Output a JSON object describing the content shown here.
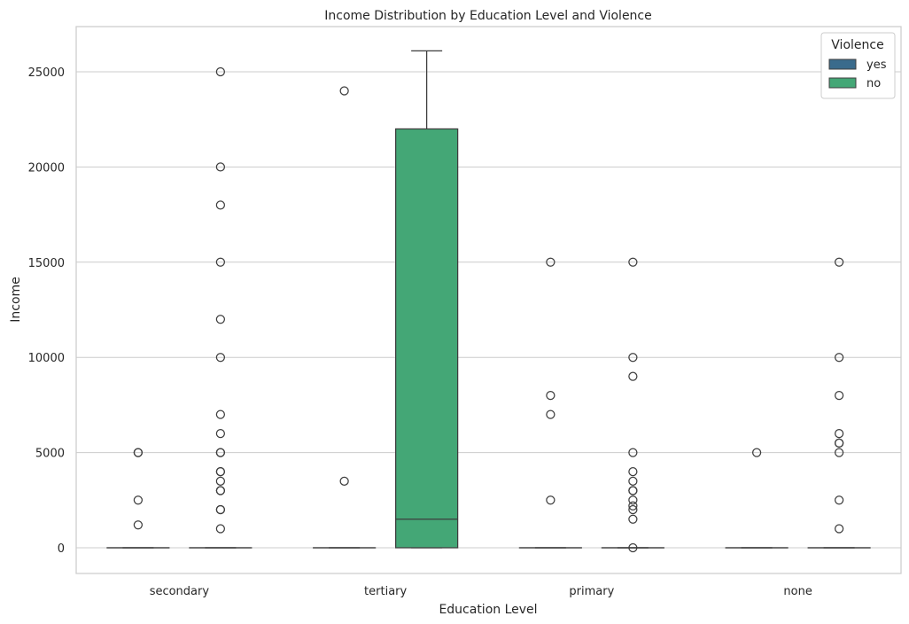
{
  "chart_data": {
    "type": "box",
    "title": "Income Distribution by Education Level and Violence",
    "xlabel": "Education Level",
    "ylabel": "Income",
    "categories": [
      "secondary",
      "tertiary",
      "primary",
      "none"
    ],
    "ylim": [
      -1300,
      27400
    ],
    "yticks": [
      0,
      5000,
      10000,
      15000,
      20000,
      25000
    ],
    "grid": "horizontal",
    "legend": {
      "title": "Violence",
      "position": "top-right"
    },
    "series": [
      {
        "name": "yes",
        "color": "#3a6b8c",
        "boxes": [
          {
            "category": "secondary",
            "q1": 0,
            "median": 0,
            "q3": 0,
            "whislo": 0,
            "whishi": 0,
            "fliers": [
              5000,
              5000,
              2500,
              1200
            ]
          },
          {
            "category": "tertiary",
            "q1": 0,
            "median": 0,
            "q3": 0,
            "whislo": 0,
            "whishi": 0,
            "fliers": [
              24000,
              3500
            ]
          },
          {
            "category": "primary",
            "q1": 0,
            "median": 0,
            "q3": 0,
            "whislo": 0,
            "whishi": 0,
            "fliers": [
              15000,
              8000,
              7000,
              2500
            ]
          },
          {
            "category": "none",
            "q1": 0,
            "median": 0,
            "q3": 0,
            "whislo": 0,
            "whishi": 0,
            "fliers": [
              5000
            ]
          }
        ]
      },
      {
        "name": "no",
        "color": "#44a776",
        "boxes": [
          {
            "category": "secondary",
            "q1": 0,
            "median": 0,
            "q3": 0,
            "whislo": 0,
            "whishi": 0,
            "fliers": [
              25000,
              20000,
              18000,
              15000,
              12000,
              10000,
              7000,
              6000,
              5000,
              5000,
              4000,
              4000,
              3500,
              3000,
              3000,
              2000,
              2000,
              1000
            ]
          },
          {
            "category": "tertiary",
            "q1": 0,
            "median": 1500,
            "q3": 22000,
            "whislo": 0,
            "whishi": 26100,
            "fliers": []
          },
          {
            "category": "primary",
            "q1": 0,
            "median": 0,
            "q3": 0,
            "whislo": 0,
            "whishi": 0,
            "fliers": [
              15000,
              10000,
              9000,
              5000,
              4000,
              3500,
              3000,
              3000,
              2500,
              2200,
              2000,
              1500,
              0
            ]
          },
          {
            "category": "none",
            "q1": 0,
            "median": 0,
            "q3": 0,
            "whislo": 0,
            "whishi": 0,
            "fliers": [
              15000,
              10000,
              8000,
              6000,
              5500,
              5500,
              5000,
              2500,
              1000
            ]
          }
        ]
      }
    ]
  }
}
